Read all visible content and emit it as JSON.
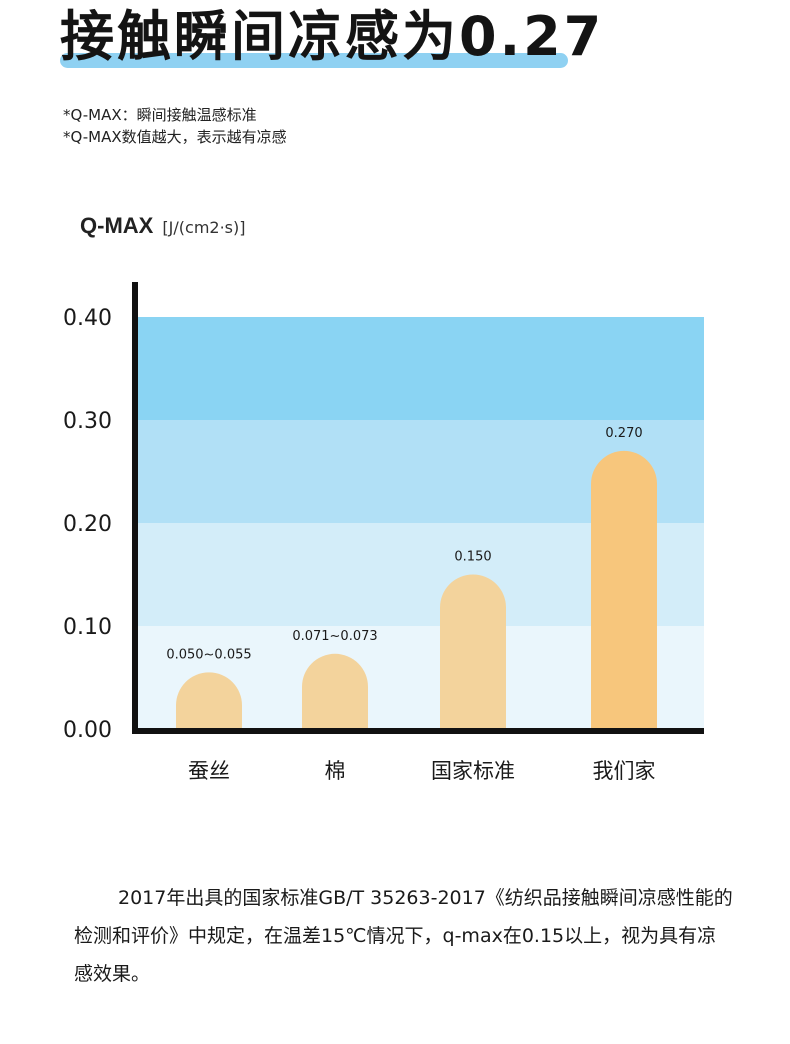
{
  "header": {
    "title": "接触瞬间凉感为0.27"
  },
  "notes": [
    "*Q-MAX：瞬间接触温感标准",
    "*Q-MAX数值越大，表示越有凉感"
  ],
  "colors": {
    "accent_bar": "#8fd1f2",
    "band_0": "#eaf6fc",
    "band_1": "#d3edf9",
    "band_2": "#b1e0f6",
    "band_3": "#8ad4f3",
    "bar_default": "#f3d39c",
    "bar_highlight": "#f7c67c",
    "axis": "#111111"
  },
  "chart_data": {
    "type": "bar",
    "ylabel": "Q-MAX",
    "yunit": "[J/(cm2·s)]",
    "ylim": [
      0,
      0.4
    ],
    "yticks": [
      "0.00",
      "0.10",
      "0.20",
      "0.30",
      "0.40"
    ],
    "categories": [
      "蚕丝",
      "棉",
      "国家标准",
      "我们家"
    ],
    "values": [
      0.055,
      0.073,
      0.15,
      0.27
    ],
    "value_labels": [
      "0.050~0.055",
      "0.071~0.073",
      "0.150",
      "0.270"
    ],
    "highlight_index": 3,
    "grid": false
  },
  "description": "2017年出具的国家标准GB/T 35263-2017《纺织品接触瞬间凉感性能的检测和评价》中规定，在温差15℃情况下，q-max在0.15以上，视为具有凉感效果。"
}
